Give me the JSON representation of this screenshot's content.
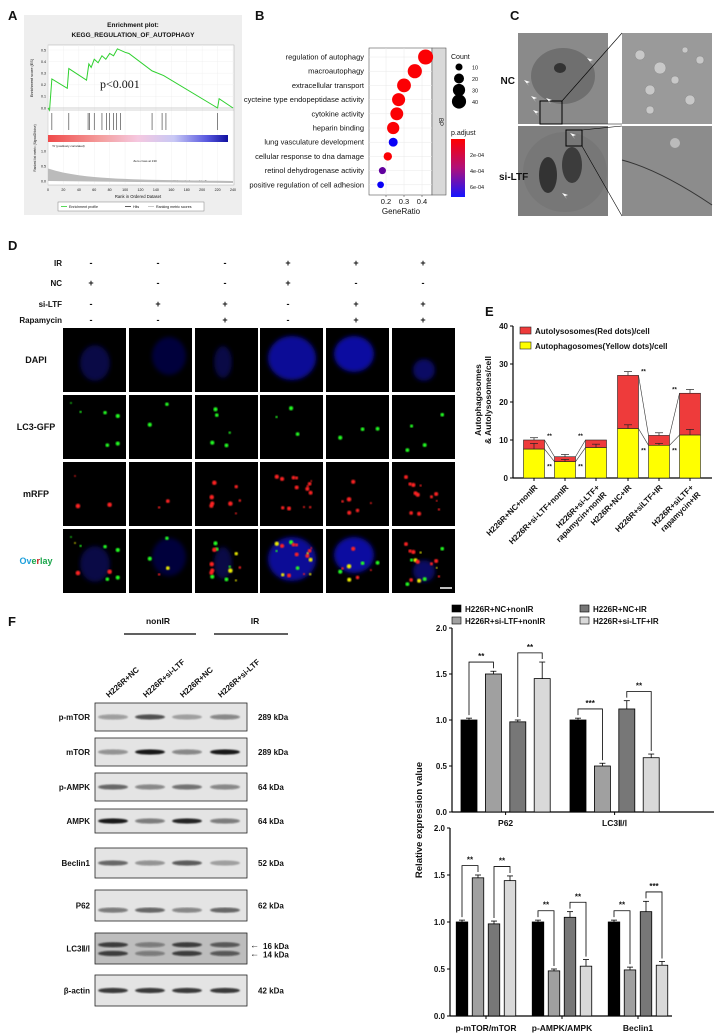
{
  "panel_labels": {
    "A": "A",
    "B": "B",
    "C": "C",
    "D": "D",
    "E": "E",
    "F": "F"
  },
  "micrographs": {
    "rows": [
      "NC",
      "si-LTF"
    ]
  },
  "fluorescence": {
    "conditions": [
      {
        "label": "IR",
        "values": [
          "-",
          "-",
          "-",
          "+",
          "+",
          "+"
        ]
      },
      {
        "label": "NC",
        "values": [
          "+",
          "-",
          "-",
          "+",
          "-",
          "-"
        ]
      },
      {
        "label": "si-LTF",
        "values": [
          "-",
          "+",
          "+",
          "-",
          "+",
          "+"
        ]
      },
      {
        "label": "Rapamycin",
        "values": [
          "-",
          "-",
          "+",
          "-",
          "+",
          "+"
        ]
      }
    ],
    "channels": [
      {
        "label": "DAPI",
        "color": "#1ea0dc"
      },
      {
        "label": "LC3-GFP",
        "color": "#1aa54a"
      },
      {
        "label": "mRFP",
        "color": "#c81e1e"
      },
      {
        "label": "Overlay",
        "color": "#1ea0dc"
      }
    ],
    "overlay_label_segments": [
      {
        "text": "Ov",
        "color": "#1ea0dc"
      },
      {
        "text": "e",
        "color": "#1aa54a"
      },
      {
        "text": "r",
        "color": "#c81e1e"
      },
      {
        "text": "lay",
        "color": "#1aa54a"
      }
    ]
  },
  "western": {
    "groups": [
      {
        "label": "nonIR"
      },
      {
        "label": "IR"
      }
    ],
    "lanes": [
      "H226R+NC",
      "H226R+si-LTF",
      "H226R+NC",
      "H226R+si-LTF"
    ],
    "proteins": [
      {
        "name": "p-mTOR",
        "kda": [
          "289 kDa"
        ],
        "band_intensity": [
          0.35,
          0.7,
          0.3,
          0.45
        ]
      },
      {
        "name": "mTOR",
        "kda": [
          "289 kDa"
        ],
        "band_intensity": [
          0.4,
          0.95,
          0.45,
          0.95
        ]
      },
      {
        "name": "p-AMPK",
        "kda": [
          "64 kDa"
        ],
        "band_intensity": [
          0.6,
          0.45,
          0.55,
          0.45
        ]
      },
      {
        "name": "AMPK",
        "kda": [
          "64 kDa"
        ],
        "band_intensity": [
          0.95,
          0.5,
          0.9,
          0.5
        ]
      },
      {
        "name": "Beclin1",
        "kda": [
          "52 kDa"
        ],
        "band_intensity": [
          0.6,
          0.4,
          0.65,
          0.3
        ]
      },
      {
        "name": "P62",
        "kda": [
          "62 kDa"
        ],
        "band_intensity": [
          0.5,
          0.6,
          0.45,
          0.6
        ]
      },
      {
        "name": "LC3Ⅱ/Ⅰ",
        "kda": [
          "16 kDa",
          "14 kDa"
        ],
        "band_intensity": [
          0.75,
          0.4,
          0.75,
          0.6
        ]
      },
      {
        "name": "β-actin",
        "kda": [
          "42 kDa"
        ],
        "band_intensity": [
          0.8,
          0.8,
          0.8,
          0.8
        ]
      }
    ],
    "arrow": "←"
  },
  "chart_data": [
    {
      "id": "gsea",
      "type": "line",
      "title": [
        "Enrichment plot:",
        "KEGG_REGULATION_OF_AUTOPHAGY"
      ],
      "ylabel": "Enrichment score (ES)",
      "xlabel": "Rank in Ordered Dataset",
      "annotation": "p<0.001",
      "x": [
        0,
        2,
        5,
        25,
        27,
        50,
        53,
        56,
        60,
        65,
        70,
        75,
        80,
        85,
        90,
        100,
        105,
        135,
        150,
        220,
        222,
        240
      ],
      "y": [
        0,
        -0.02,
        0.25,
        0.17,
        0.34,
        0.24,
        0.38,
        0.35,
        0.42,
        0.39,
        0.45,
        0.42,
        0.47,
        0.45,
        0.51,
        0.48,
        0.47,
        0.32,
        0.28,
        0,
        0.08,
        0
      ],
      "hits": [
        5,
        27,
        52,
        54,
        60,
        70,
        76,
        80,
        85,
        89,
        94,
        135,
        148,
        153,
        220
      ],
      "xlim": [
        0,
        240
      ],
      "xticks": [
        "0",
        "20",
        "40",
        "60",
        "80",
        "100",
        "120",
        "140",
        "160",
        "180",
        "200",
        "220",
        "240"
      ],
      "ylim": [
        0,
        0.5
      ],
      "yticks": [
        "0.0",
        "0.1",
        "0.2",
        "0.3",
        "0.4",
        "0.5"
      ],
      "metric_ylabel": "Ranked list metric (Signal2Noise)",
      "metric_yticks": [
        "1.0",
        "0.5",
        "0.0"
      ],
      "pos_label": "'N' (positively correlated)",
      "neg_label": "'L' (negatively correlated)",
      "zero_cross": "Zero cross at 130",
      "legend": [
        "Enrichment profile",
        "Hits",
        "Ranking metric scores"
      ],
      "colors": {
        "profile": "#2fd02f",
        "hits": "#333333",
        "metric": "#bbbbbb"
      }
    },
    {
      "id": "go_dotplot",
      "type": "scatter",
      "categories": [
        "regulation of autophagy",
        "macroautophagy",
        "extracellular transport",
        "cycteine type endopeptidase activity",
        "cytokine activity",
        "heparin binding",
        "lung vasculature development",
        "cellular response to dna damage",
        "retinol dehydrogenase activity",
        "positive regulation of cell adhesion"
      ],
      "gene_ratio": [
        0.42,
        0.36,
        0.3,
        0.27,
        0.26,
        0.24,
        0.24,
        0.21,
        0.18,
        0.17
      ],
      "count": [
        45,
        40,
        38,
        34,
        33,
        30,
        16,
        14,
        10,
        9
      ],
      "p_adjust": [
        1e-05,
        1e-05,
        1e-05,
        1e-05,
        1e-05,
        1e-05,
        0.0007,
        1e-05,
        0.00045,
        0.0007
      ],
      "facet": "BP",
      "xlabel": "GeneRatio",
      "xticks": [
        "0.2",
        "0.3",
        "0.4"
      ],
      "size_legend": {
        "title": "Count",
        "values": [
          "10",
          "20",
          "30",
          "40"
        ]
      },
      "color_legend": {
        "title": "p.adjust",
        "ticks": [
          "2e-04",
          "4e-04",
          "6e-04"
        ],
        "range": [
          0,
          0.000725
        ],
        "low_color": "#ff0000",
        "high_color": "#0000ff"
      },
      "grid": true
    },
    {
      "id": "autophagy_puncta",
      "type": "bar",
      "stacked": true,
      "ylabel": [
        "Autophagosomes",
        "& Autolysosomes/cell"
      ],
      "ylim": [
        0,
        40
      ],
      "yticks": [
        "0",
        "10",
        "20",
        "30",
        "40"
      ],
      "categories": [
        [
          "H226R+NC+nonIR"
        ],
        [
          "H226R+si-LTF+nonIR"
        ],
        [
          "H226R+si-LTF+",
          "rapamycin+nonIR"
        ],
        [
          "H226R+NC+IR"
        ],
        [
          "H226R+siLTF+IR"
        ],
        [
          "H226R+siLTF+",
          "rapamycin+IR"
        ]
      ],
      "series": [
        {
          "name": "Autophagosomes(Yellow dots)/cell",
          "values": [
            7.6,
            4.3,
            8.0,
            13.0,
            8.6,
            11.3
          ],
          "errors": [
            1.5,
            0.6,
            0.9,
            1.0,
            0.5,
            1.5
          ],
          "color": "#ffff00"
        },
        {
          "name": "Autolysosomes(Red dots)/cell",
          "totals": [
            10.0,
            5.6,
            10.0,
            27.0,
            11.2,
            22.3
          ],
          "errors": [
            0.6,
            0.6,
            0,
            1.0,
            0.7,
            1.0
          ],
          "color": "#ee3b3b"
        }
      ],
      "significance": [
        {
          "from": 0,
          "to": 1,
          "level": "total",
          "label": "**"
        },
        {
          "from": 0,
          "to": 1,
          "level": "yellow",
          "label": "**"
        },
        {
          "from": 1,
          "to": 2,
          "level": "total",
          "label": "**"
        },
        {
          "from": 1,
          "to": 2,
          "level": "yellow",
          "label": "**"
        },
        {
          "from": 3,
          "to": 4,
          "level": "total",
          "label": "**"
        },
        {
          "from": 3,
          "to": 4,
          "level": "yellow",
          "label": "**"
        },
        {
          "from": 4,
          "to": 5,
          "level": "total",
          "label": "**"
        },
        {
          "from": 4,
          "to": 5,
          "level": "yellow",
          "label": "**"
        }
      ]
    },
    {
      "id": "wb_quant_top",
      "type": "bar",
      "ylabel": "Relative expression value",
      "ylim": [
        0,
        2
      ],
      "yticks": [
        "0.0",
        "0.5",
        "1.0",
        "1.5",
        "2.0"
      ],
      "legend": [
        {
          "name": "H226R+NC+nonIR",
          "color": "#000000"
        },
        {
          "name": "H226R+NC+IR",
          "color": "#777777"
        },
        {
          "name": "H226R+si-LTF+nonIR",
          "color": "#a0a0a0"
        },
        {
          "name": "H226R+si-LTF+IR",
          "color": "#d9d9d9"
        }
      ],
      "series_order": [
        "H226R+NC+nonIR",
        "H226R+si-LTF+nonIR",
        "H226R+NC+IR",
        "H226R+si-LTF+IR"
      ],
      "series_colors": [
        "#000000",
        "#a0a0a0",
        "#777777",
        "#d9d9d9"
      ],
      "categories": [
        "P62",
        "LC3Ⅱ/Ⅰ"
      ],
      "values": [
        [
          1.0,
          1.5,
          0.98,
          1.45
        ],
        [
          1.0,
          0.5,
          1.12,
          0.59
        ]
      ],
      "errors": [
        [
          0.02,
          0.03,
          0.02,
          0.18
        ],
        [
          0.02,
          0.03,
          0.09,
          0.04
        ]
      ],
      "significance": [
        [
          {
            "pair": [
              0,
              1
            ],
            "label": "**"
          },
          {
            "pair": [
              2,
              3
            ],
            "label": "**"
          }
        ],
        [
          {
            "pair": [
              0,
              1
            ],
            "label": "***"
          },
          {
            "pair": [
              2,
              3
            ],
            "label": "**"
          }
        ]
      ]
    },
    {
      "id": "wb_quant_bottom",
      "type": "bar",
      "ylim": [
        0,
        2
      ],
      "yticks": [
        "0.0",
        "0.5",
        "1.0",
        "1.5",
        "2.0"
      ],
      "series_order": [
        "H226R+NC+nonIR",
        "H226R+si-LTF+nonIR",
        "H226R+NC+IR",
        "H226R+si-LTF+IR"
      ],
      "series_colors": [
        "#000000",
        "#a0a0a0",
        "#777777",
        "#d9d9d9"
      ],
      "categories": [
        "p-mTOR/mTOR",
        "p-AMPK/AMPK",
        "Beclin1"
      ],
      "values": [
        [
          1.0,
          1.47,
          0.98,
          1.44
        ],
        [
          1.0,
          0.48,
          1.05,
          0.53
        ],
        [
          1.0,
          0.49,
          1.11,
          0.54
        ]
      ],
      "errors": [
        [
          0.02,
          0.03,
          0.03,
          0.05
        ],
        [
          0.02,
          0.02,
          0.06,
          0.07
        ],
        [
          0.02,
          0.03,
          0.11,
          0.04
        ]
      ],
      "significance": [
        [
          {
            "pair": [
              0,
              1
            ],
            "label": "**"
          },
          {
            "pair": [
              2,
              3
            ],
            "label": "**"
          }
        ],
        [
          {
            "pair": [
              0,
              1
            ],
            "label": "**"
          },
          {
            "pair": [
              2,
              3
            ],
            "label": "**"
          }
        ],
        [
          {
            "pair": [
              0,
              1
            ],
            "label": "**"
          },
          {
            "pair": [
              2,
              3
            ],
            "label": "***"
          }
        ]
      ]
    }
  ]
}
